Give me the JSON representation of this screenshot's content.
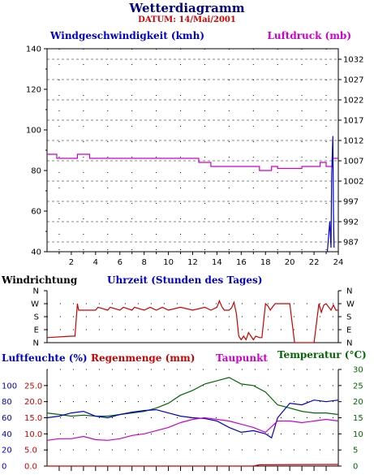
{
  "header": {
    "title": "Wetterdiagramm",
    "subtitle": "DATUM: 14/Mai/2001"
  },
  "colors": {
    "wind": "#0000cc",
    "pressure": "#cc00cc",
    "direction": "#cc0000",
    "humidity": "#0000cc",
    "rain": "#cc0000",
    "dewpoint": "#cc00cc",
    "temperature": "#006600"
  },
  "chart_data": [
    {
      "type": "line",
      "panel": "top",
      "left_label": "Windgeschwindigkeit (kmh)",
      "right_label": "Luftdruck (mb)",
      "xlabel": "Uhrzeit (Stunden des Tages)",
      "xlim": [
        0,
        24
      ],
      "x_ticks": [
        "2",
        "4",
        "6",
        "8",
        "10",
        "12",
        "14",
        "16",
        "18",
        "20",
        "22",
        "24"
      ],
      "y_left_lim": [
        40,
        140
      ],
      "y_left_ticks": [
        "40",
        "60",
        "80",
        "100",
        "120",
        "140"
      ],
      "y_right_lim": [
        984.6,
        1034.6
      ],
      "y_right_ticks": [
        "987",
        "992",
        "997",
        "1002",
        "1007",
        "1012",
        "1017",
        "1022",
        "1027",
        "1032"
      ],
      "grid": true,
      "series": [
        {
          "name": "Luftdruck (mb)",
          "axis": "right",
          "x": [
            0,
            0.8,
            0.8,
            2.5,
            2.5,
            3.5,
            3.5,
            12.5,
            12.5,
            13.5,
            13.5,
            16,
            16,
            17.5,
            17.5,
            18.5,
            18.5,
            19,
            19,
            21,
            21,
            22.5,
            22.5,
            23,
            23,
            23.5,
            23.5,
            24
          ],
          "y": [
            1008.6,
            1008.6,
            1007.6,
            1007.6,
            1008.6,
            1008.6,
            1007.6,
            1007.6,
            1006.6,
            1006.6,
            1005.6,
            1005.6,
            1005.6,
            1005.6,
            1004.6,
            1004.6,
            1005.6,
            1005.6,
            1005.1,
            1005.1,
            1005.6,
            1005.6,
            1006.6,
            1006.6,
            1005.6,
            1005.6,
            1007.6,
            1007.6
          ]
        },
        {
          "name": "Windgeschwindigkeit (kmh)",
          "axis": "left",
          "x": [
            23.1,
            23.3,
            23.4,
            23.45,
            23.55,
            23.6,
            23.65
          ],
          "y": [
            40,
            55,
            42,
            78,
            97,
            60,
            42
          ]
        }
      ]
    },
    {
      "type": "line",
      "panel": "middle",
      "left_label": "Windrichtung",
      "y_ticks": [
        "N",
        "W",
        "S",
        "E",
        "N"
      ],
      "y_values": [
        360,
        270,
        180,
        90,
        0
      ],
      "xlim": [
        0,
        24
      ],
      "series": [
        {
          "name": "Windrichtung",
          "x": [
            0,
            2,
            2.3,
            2.5,
            2.6,
            2.8,
            3,
            4,
            4.2,
            5,
            5.2,
            6,
            6.3,
            7,
            7.2,
            8,
            8.5,
            9,
            9.5,
            10,
            11,
            12,
            13,
            13.5,
            14,
            14.2,
            14.4,
            14.6,
            15,
            15.2,
            15.4,
            15.6,
            15.8,
            16,
            16.2,
            16.4,
            16.6,
            16.8,
            17,
            17.2,
            17.5,
            17.7,
            18,
            18.2,
            18.4,
            18.6,
            18.8,
            19,
            20,
            20.4,
            20.6,
            20.8,
            21,
            22,
            22.4,
            22.6,
            22.8,
            23,
            23.4,
            23.6,
            23.8,
            24
          ],
          "y": [
            35,
            45,
            45,
            270,
            225,
            225,
            225,
            225,
            245,
            225,
            245,
            225,
            245,
            225,
            245,
            225,
            245,
            225,
            245,
            225,
            245,
            225,
            245,
            225,
            245,
            290,
            250,
            225,
            225,
            240,
            280,
            200,
            45,
            20,
            45,
            20,
            70,
            45,
            20,
            45,
            35,
            35,
            270,
            255,
            225,
            250,
            270,
            270,
            270,
            0,
            0,
            0,
            0,
            0,
            270,
            210,
            260,
            270,
            225,
            260,
            225,
            225
          ]
        }
      ]
    },
    {
      "type": "line",
      "panel": "bottom",
      "left_labels": [
        "Luftfeuchte (%)",
        "Regenmenge (mm)"
      ],
      "middle_label": "Taupunkt",
      "right_label": "Temperatur (°C)",
      "y_left_ticks": [
        "0",
        "20",
        "40",
        "60",
        "80",
        "100"
      ],
      "y_rain_ticks": [
        "0.0",
        "5.0",
        "10.0",
        "15.0",
        "20.0",
        "25.0"
      ],
      "y_right_ticks": [
        "0",
        "5",
        "10",
        "15",
        "20",
        "25",
        "30"
      ],
      "xlim": [
        0,
        24
      ],
      "series": [
        {
          "name": "Temperatur (°C)",
          "axis": "right",
          "x": [
            0,
            1,
            2,
            3,
            4,
            5,
            6,
            7,
            8,
            9,
            10,
            11,
            12,
            13,
            14,
            15,
            16,
            17,
            18,
            19,
            20,
            21,
            22,
            23,
            24
          ],
          "y": [
            16.5,
            16,
            15.5,
            15.8,
            15.5,
            15.5,
            16,
            16.5,
            17,
            18,
            19.5,
            22,
            23.5,
            25.5,
            26.5,
            27.5,
            25.5,
            25,
            23,
            19,
            18,
            17,
            16.5,
            16.5,
            16
          ]
        },
        {
          "name": "Luftfeuchte (%)",
          "axis": "left",
          "x": [
            0,
            1,
            2,
            3,
            4,
            5,
            6,
            7,
            8,
            9,
            10,
            11,
            12,
            13,
            14,
            15,
            16,
            17,
            18,
            18.5,
            19,
            20,
            21,
            22,
            23,
            24
          ],
          "y": [
            60,
            62,
            66,
            68,
            62,
            60,
            64,
            67,
            69,
            70,
            66,
            62,
            60,
            59,
            56,
            48,
            42,
            44,
            40,
            35,
            60,
            78,
            76,
            82,
            80,
            82
          ]
        },
        {
          "name": "Taupunkt",
          "axis": "right",
          "x": [
            0,
            1,
            2,
            3,
            4,
            5,
            6,
            7,
            8,
            9,
            10,
            11,
            12,
            13,
            14,
            15,
            16,
            17,
            18,
            19,
            20,
            21,
            22,
            23,
            24
          ],
          "y": [
            8,
            8.5,
            8.5,
            9.2,
            8.2,
            8,
            8.5,
            9.5,
            10,
            11,
            12,
            13.5,
            14.5,
            15,
            14.5,
            14,
            13,
            12,
            10.5,
            14,
            14,
            13.5,
            14,
            14.5,
            14
          ]
        },
        {
          "name": "Regenmenge (mm)",
          "axis": "rain",
          "x": [
            0,
            17,
            17.5,
            24
          ],
          "y": [
            0,
            0,
            0.4,
            0.5
          ]
        }
      ]
    }
  ]
}
